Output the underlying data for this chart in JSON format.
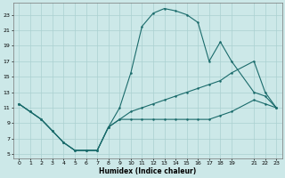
{
  "xlabel": "Humidex (Indice chaleur)",
  "bg_color": "#cce8e8",
  "grid_color": "#aad0d0",
  "line_color": "#1a6b6b",
  "xlim": [
    -0.5,
    23.5
  ],
  "ylim": [
    4.5,
    24.5
  ],
  "yticks": [
    5,
    7,
    9,
    11,
    13,
    15,
    17,
    19,
    21,
    23
  ],
  "xticks": [
    0,
    1,
    2,
    3,
    4,
    5,
    6,
    7,
    8,
    9,
    10,
    11,
    12,
    13,
    14,
    15,
    16,
    17,
    18,
    19,
    21,
    22,
    23
  ],
  "c1x": [
    0,
    1,
    2,
    3,
    4,
    5,
    6,
    7,
    8,
    9,
    10,
    11,
    12,
    13,
    14,
    15,
    16,
    17,
    18,
    19,
    21,
    22,
    23
  ],
  "c1y": [
    11.5,
    10.5,
    9.5,
    8.0,
    6.5,
    5.5,
    5.5,
    5.5,
    8.5,
    9.5,
    9.5,
    9.5,
    9.5,
    9.5,
    9.5,
    9.5,
    9.5,
    9.5,
    10.0,
    10.5,
    12.0,
    11.5,
    11.0
  ],
  "c2x": [
    0,
    1,
    2,
    3,
    4,
    5,
    6,
    7,
    8,
    9,
    10,
    11,
    12,
    13,
    14,
    15,
    16,
    17,
    18,
    19,
    21,
    22,
    23
  ],
  "c2y": [
    11.5,
    10.5,
    9.5,
    8.0,
    6.5,
    5.5,
    5.5,
    5.5,
    8.5,
    9.5,
    10.5,
    11.0,
    11.5,
    12.0,
    12.5,
    13.0,
    13.5,
    14.0,
    14.5,
    15.5,
    17.0,
    13.0,
    11.0
  ],
  "c3x": [
    0,
    1,
    2,
    3,
    4,
    5,
    6,
    7,
    8,
    9,
    10,
    11,
    12,
    13,
    14,
    15,
    16,
    17,
    18,
    19,
    21,
    22,
    23
  ],
  "c3y": [
    11.5,
    10.5,
    9.5,
    8.0,
    6.5,
    5.5,
    5.5,
    5.5,
    8.5,
    11.0,
    15.5,
    21.5,
    23.2,
    23.8,
    23.5,
    23.0,
    22.0,
    17.0,
    19.5,
    17.0,
    13.0,
    12.5,
    11.0
  ]
}
